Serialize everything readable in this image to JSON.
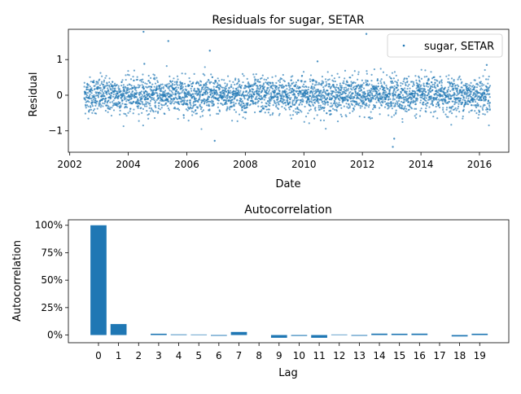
{
  "chart_data": [
    {
      "type": "scatter",
      "title": "Residuals for sugar, SETAR",
      "xlabel": "Date",
      "ylabel": "Residual",
      "xlim": [
        "2001-12-15",
        "2017-01-01"
      ],
      "ylim": [
        -1.6,
        1.85
      ],
      "x_ticks": [
        {
          "value": "2002-01-01",
          "label": "2002"
        },
        {
          "value": "2004-01-01",
          "label": "2004"
        },
        {
          "value": "2006-01-01",
          "label": "2006"
        },
        {
          "value": "2008-01-01",
          "label": "2008"
        },
        {
          "value": "2010-01-01",
          "label": "2010"
        },
        {
          "value": "2012-01-01",
          "label": "2012"
        },
        {
          "value": "2014-01-01",
          "label": "2014"
        },
        {
          "value": "2016-01-01",
          "label": "2016"
        }
      ],
      "y_ticks": [
        {
          "value": 1,
          "label": "1"
        },
        {
          "value": 0,
          "label": "0"
        },
        {
          "value": -1,
          "label": "−1"
        }
      ],
      "legend": {
        "position": "top-right",
        "entries": [
          "sugar, SETAR"
        ]
      },
      "color": "#1f77b4",
      "date_range": [
        "2002-07-01",
        "2016-05-15"
      ],
      "noise_std": 0.25,
      "notable_points": [
        {
          "x": "2004-07-10",
          "y": 1.78
        },
        {
          "x": "2005-05-15",
          "y": 1.52
        },
        {
          "x": "2006-10-15",
          "y": 1.25
        },
        {
          "x": "2012-02-20",
          "y": 1.72
        },
        {
          "x": "2013-01-15",
          "y": -1.45
        },
        {
          "x": "2006-12-15",
          "y": -1.28
        },
        {
          "x": "2013-02-01",
          "y": -1.22
        },
        {
          "x": "2004-07-20",
          "y": 0.88
        },
        {
          "x": "2010-06-20",
          "y": 0.95
        },
        {
          "x": "2016-04-01",
          "y": 0.85
        }
      ]
    },
    {
      "type": "bar",
      "title": "Autocorrelation",
      "xlabel": "Lag",
      "ylabel": "Autocorrelation",
      "ylim": [
        -0.07,
        1.05
      ],
      "y_ticks": [
        {
          "value": 0,
          "label": "0%"
        },
        {
          "value": 0.25,
          "label": "25%"
        },
        {
          "value": 0.5,
          "label": "50%"
        },
        {
          "value": 0.75,
          "label": "75%"
        },
        {
          "value": 1,
          "label": "100%"
        }
      ],
      "categories": [
        "0",
        "1",
        "2",
        "3",
        "4",
        "5",
        "6",
        "7",
        "8",
        "9",
        "10",
        "11",
        "12",
        "13",
        "14",
        "15",
        "16",
        "17",
        "18",
        "19"
      ],
      "values": [
        1.0,
        0.1,
        0.0,
        0.012,
        0.006,
        0.005,
        -0.007,
        0.028,
        0.0,
        -0.025,
        -0.008,
        -0.025,
        0.005,
        -0.007,
        0.013,
        0.012,
        0.013,
        0.0,
        -0.013,
        0.012
      ],
      "color": "#1f77b4"
    }
  ]
}
